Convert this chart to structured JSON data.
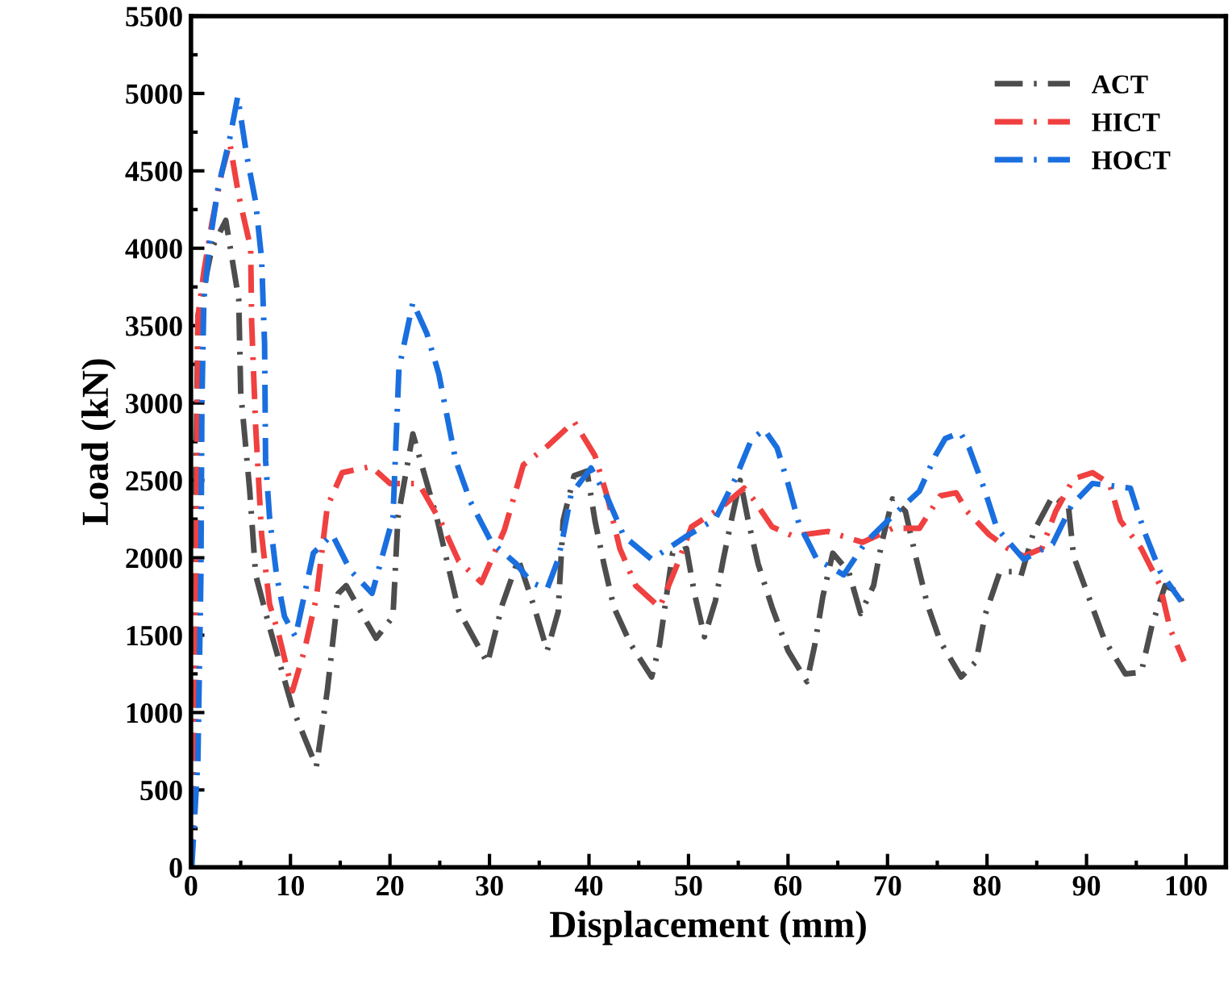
{
  "chart_data": {
    "type": "line",
    "xlabel": "Displacement (mm)",
    "ylabel": "Load (kN)",
    "xlim": [
      0,
      104
    ],
    "xticks": [
      0,
      10,
      20,
      30,
      40,
      50,
      60,
      70,
      80,
      90,
      100
    ],
    "ylim": [
      0,
      5500
    ],
    "yticks": [
      0,
      500,
      1000,
      1500,
      2000,
      2500,
      3000,
      3500,
      4000,
      4500,
      5000,
      5500
    ],
    "grid": false,
    "legend": "top right",
    "line_style": "dashed",
    "marker": "none",
    "series": [
      {
        "name": "ACT",
        "color": "#4d4d4d",
        "x": [
          0,
          0.7,
          2.1,
          3.5,
          4.8,
          5.0,
          5.9,
          6.5,
          7.9,
          10.2,
          12.6,
          13.7,
          14.8,
          15.6,
          17.7,
          18.6,
          20.3,
          20.8,
          22.3,
          24.7,
          26.9,
          29.8,
          31.3,
          32.9,
          34.5,
          35.8,
          36.9,
          37.4,
          38.5,
          39.8,
          40.6,
          41.5,
          42.5,
          44.2,
          46.3,
          47.1,
          48.4,
          49.8,
          50.6,
          51.6,
          52.7,
          53.5,
          54.4,
          55.2,
          56.0,
          57.0,
          58.4,
          60.0,
          61.9,
          62.7,
          63.5,
          64.5,
          66.1,
          67.3,
          68.6,
          69.4,
          70.5,
          71.8,
          72.9,
          74.0,
          75.3,
          77.4,
          78.9,
          79.8,
          81.3,
          82.6,
          83.4,
          84.7,
          86.6,
          88.2,
          88.7,
          90.2,
          91.8,
          93.9,
          95.5,
          96.6,
          97.9,
          99.2,
          99.8
        ],
        "values": [
          0,
          3560,
          4000,
          4180,
          3670,
          3070,
          2440,
          1890,
          1550,
          1030,
          650,
          1140,
          1770,
          1820,
          1580,
          1480,
          1620,
          2260,
          2800,
          2260,
          1660,
          1320,
          1700,
          1990,
          1680,
          1400,
          1650,
          2240,
          2530,
          2560,
          2240,
          1960,
          1680,
          1440,
          1230,
          1440,
          2030,
          2060,
          1770,
          1490,
          1720,
          1990,
          2270,
          2500,
          2240,
          1960,
          1680,
          1400,
          1200,
          1440,
          1750,
          2030,
          1910,
          1640,
          1820,
          2090,
          2380,
          2300,
          1990,
          1700,
          1460,
          1230,
          1330,
          1630,
          1910,
          1910,
          1880,
          2170,
          2400,
          2320,
          2010,
          1750,
          1470,
          1250,
          1260,
          1570,
          1820,
          1780,
          1680
        ]
      },
      {
        "name": "HICT",
        "color": "#f04040",
        "x": [
          0,
          0.5,
          0.7,
          1.3,
          2.1,
          3.1,
          3.9,
          4.8,
          6.0,
          6.1,
          6.5,
          7.1,
          7.9,
          8.8,
          10.2,
          11.4,
          12.6,
          13.7,
          15.2,
          18.1,
          20.0,
          22.9,
          25.2,
          26.9,
          29.2,
          31.5,
          33.4,
          35.8,
          38.5,
          40.6,
          41.9,
          43.1,
          44.7,
          47.1,
          48.7,
          50.3,
          53.2,
          55.6,
          56.5,
          58.4,
          60.5,
          64.0,
          67.5,
          70.5,
          73.2,
          75.3,
          76.9,
          78.0,
          80.2,
          82.1,
          83.7,
          85.5,
          86.9,
          88.7,
          90.6,
          92.3,
          93.4,
          95.5,
          97.4,
          98.4,
          99.8
        ],
        "values": [
          0,
          1140,
          3560,
          3850,
          4160,
          4490,
          4680,
          4340,
          4000,
          3520,
          2850,
          2150,
          1700,
          1510,
          1140,
          1400,
          1740,
          2330,
          2550,
          2590,
          2480,
          2480,
          2220,
          1980,
          1840,
          2180,
          2600,
          2720,
          2880,
          2660,
          2380,
          2060,
          1820,
          1680,
          1930,
          2200,
          2320,
          2450,
          2380,
          2200,
          2140,
          2170,
          2100,
          2190,
          2190,
          2400,
          2420,
          2300,
          2150,
          2060,
          2010,
          2060,
          2300,
          2510,
          2550,
          2480,
          2240,
          2060,
          1820,
          1540,
          1330
        ]
      },
      {
        "name": "HOCT",
        "color": "#1a6fdf",
        "x": [
          0,
          0.1,
          0.7,
          1.0,
          1.1,
          1.3,
          1.9,
          2.7,
          3.9,
          4.7,
          5.6,
          6.5,
          7.1,
          7.4,
          7.5,
          7.9,
          8.6,
          9.4,
          10.5,
          12.3,
          14.2,
          16.0,
          18.2,
          20.3,
          20.9,
          22.3,
          23.7,
          24.9,
          26.6,
          28.1,
          30.2,
          32.7,
          34.2,
          35.8,
          36.9,
          37.4,
          38.2,
          40.2,
          41.9,
          43.5,
          46.3,
          49.8,
          52.7,
          54.7,
          56.3,
          57.6,
          58.9,
          60.0,
          61.1,
          62.9,
          65.6,
          67.8,
          70.5,
          73.2,
          74.8,
          75.8,
          77.3,
          78.2,
          79.7,
          81.0,
          83.7,
          86.6,
          88.5,
          90.6,
          94.4,
          95.8,
          97.4,
          99.5
        ],
        "values": [
          0,
          20,
          700,
          1890,
          3000,
          3670,
          4040,
          4380,
          4710,
          4980,
          4600,
          4300,
          3930,
          3380,
          2630,
          2260,
          1890,
          1620,
          1490,
          2030,
          2150,
          1920,
          1770,
          2260,
          3220,
          3650,
          3450,
          3190,
          2630,
          2360,
          2100,
          1960,
          1840,
          1800,
          1990,
          2140,
          2410,
          2580,
          2380,
          2140,
          1990,
          2140,
          2250,
          2510,
          2760,
          2830,
          2710,
          2480,
          2220,
          1990,
          1890,
          2100,
          2270,
          2430,
          2660,
          2770,
          2810,
          2710,
          2450,
          2190,
          1990,
          2090,
          2340,
          2480,
          2450,
          2170,
          1910,
          1720
        ]
      }
    ]
  }
}
